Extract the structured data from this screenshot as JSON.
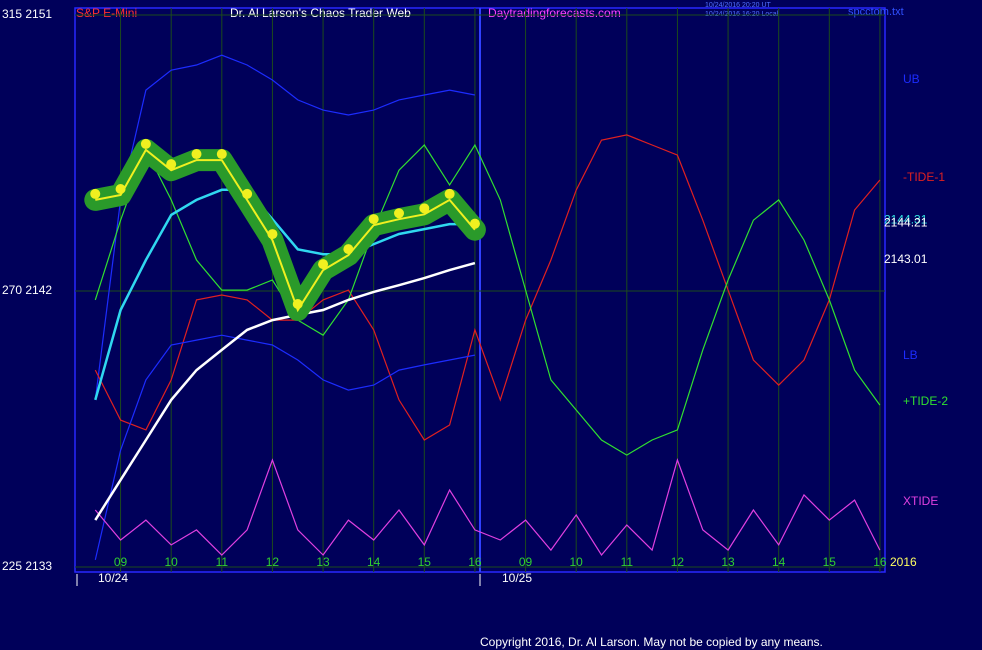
{
  "chart_data": {
    "type": "line",
    "symbol": "S&P E-Mini",
    "title": "Dr. Al Larson's Chaos Trader Web",
    "site": "Daytradingforecasts.com",
    "timestamps": [
      "10/24/2016 20:20 UT",
      "10/24/2016 16:20 Local"
    ],
    "file": "spcctom.txt",
    "copyright": "Copyright 2016, Dr. Al Larson. May not be copied by any means.",
    "dates": [
      "10/24",
      "10/25"
    ],
    "year": "2016",
    "xlim": [
      8.1,
      24.1
    ],
    "xticks": [
      {
        "value": 9,
        "label": "09"
      },
      10,
      11,
      12,
      13,
      14,
      15,
      16,
      {
        "value": 17,
        "label": "09"
      },
      {
        "value": 18,
        "label": "10"
      },
      {
        "value": 19,
        "label": "11"
      },
      {
        "value": 20,
        "label": "12"
      },
      {
        "value": 21,
        "label": "13"
      },
      {
        "value": 22,
        "label": "14"
      },
      {
        "value": 23,
        "label": "15"
      },
      {
        "value": 24,
        "label": "16"
      }
    ],
    "ylim": [
      2133,
      2151
    ],
    "yticks": [
      {
        "value": 2133,
        "label": "225  2133"
      },
      {
        "value": 2142,
        "label": "270  2142"
      },
      {
        "value": 2151,
        "label": "315  2151"
      }
    ],
    "last_values": [
      {
        "value": 2144.31,
        "label": "2144.31"
      },
      {
        "value": 2144.21,
        "label": "2144.21"
      },
      {
        "value": 2143.01,
        "label": "2143.01"
      }
    ],
    "x": [
      8.5,
      9,
      9.5,
      10,
      10.5,
      11,
      11.5,
      12,
      12.5,
      13,
      13.5,
      14,
      14.5,
      15,
      15.5,
      16,
      16.5,
      17,
      17.5,
      18,
      18.5,
      19,
      19.5,
      20,
      20.5,
      21,
      21.5,
      22,
      22.5,
      23,
      23.5,
      24
    ],
    "series": [
      {
        "name": "UB",
        "color": "#1c2cff",
        "values": [
          2138.45,
          2144.97,
          2148.55,
          2149.2,
          2149.37,
          2149.69,
          2149.37,
          2148.88,
          2148.23,
          2147.9,
          2147.74,
          2147.9,
          2148.23,
          2148.39,
          2148.55,
          2148.39,
          null,
          null,
          null,
          null,
          null,
          null,
          null,
          null,
          null,
          null,
          null,
          null,
          null,
          null,
          null,
          null
        ]
      },
      {
        "name": "-TIDE-1",
        "color": "#e02020",
        "values": [
          2139.42,
          2137.79,
          2137.47,
          2139.1,
          2141.71,
          2141.87,
          2141.71,
          2141.05,
          2141.05,
          2141.71,
          2142.03,
          2140.73,
          2138.45,
          2137.14,
          2137.63,
          2140.73,
          2138.45,
          2141.05,
          2143.01,
          2145.29,
          2146.92,
          2147.09,
          2146.76,
          2146.43,
          2144.31,
          2142.03,
          2139.75,
          2138.93,
          2139.75,
          2141.71,
          2144.64,
          2145.62
        ]
      },
      {
        "name": "LB",
        "color": "#1c2cff",
        "values": [
          2133.23,
          2136.81,
          2139.1,
          2140.24,
          2140.4,
          2140.56,
          2140.4,
          2140.24,
          2139.75,
          2139.1,
          2138.77,
          2138.93,
          2139.42,
          2139.59,
          2139.75,
          2139.91,
          null,
          null,
          null,
          null,
          null,
          null,
          null,
          null,
          null,
          null,
          null,
          null,
          null,
          null,
          null,
          null
        ]
      },
      {
        "name": "+TIDE-2",
        "color": "#30e030",
        "values": [
          2141.71,
          2144.31,
          2146.6,
          2144.97,
          2143.01,
          2142.03,
          2142.03,
          2142.36,
          2141.05,
          2140.56,
          2141.71,
          2143.99,
          2145.94,
          2146.76,
          2145.46,
          2146.76,
          2144.97,
          2142.03,
          2139.1,
          2138.12,
          2137.14,
          2136.65,
          2137.14,
          2137.47,
          2140.08,
          2142.36,
          2144.31,
          2144.97,
          2143.66,
          2141.71,
          2139.42,
          2138.28
        ]
      },
      {
        "name": "XTIDE",
        "color": "#e040e0",
        "values": [
          2134.86,
          2133.88,
          2134.53,
          2133.72,
          2134.21,
          2133.39,
          2134.21,
          2136.49,
          2134.21,
          2133.39,
          2134.53,
          2133.88,
          2134.86,
          2133.72,
          2135.51,
          2134.21,
          2133.88,
          2134.53,
          2133.55,
          2134.7,
          2133.39,
          2134.37,
          2133.55,
          2136.49,
          2134.21,
          2133.55,
          2134.86,
          2133.72,
          2135.35,
          2134.53,
          2135.18,
          2133.55
        ]
      },
      {
        "color": "#ffffff",
        "values": [
          2134.53,
          2135.84,
          2137.14,
          2138.45,
          2139.42,
          2140.08,
          2140.73,
          2141.05,
          2141.22,
          2141.38,
          2141.71,
          2141.97,
          2142.19,
          2142.42,
          2142.68,
          2142.91,
          null,
          null,
          null,
          null,
          null,
          null,
          null,
          null,
          null,
          null,
          null,
          null,
          null,
          null,
          null,
          null
        ]
      },
      {
        "color": "#30d8f0",
        "values": [
          2138.45,
          2141.38,
          2143.01,
          2144.48,
          2144.97,
          2145.3,
          2145.3,
          2144.34,
          2143.36,
          2143.2,
          2143.2,
          2143.53,
          2143.86,
          2144.02,
          2144.18,
          2144.18,
          null,
          null,
          null,
          null,
          null,
          null,
          null,
          null,
          null,
          null,
          null,
          null,
          null,
          null,
          null,
          null
        ]
      },
      {
        "color": "#f0f020",
        "band_color": "#2a9a2a",
        "values": [
          2144.97,
          2145.13,
          2146.6,
          2145.94,
          2146.27,
          2146.27,
          2144.97,
          2143.66,
          2141.38,
          2142.68,
          2143.17,
          2144.15,
          2144.34,
          2144.5,
          2144.97,
          2144.0,
          null,
          null,
          null,
          null,
          null,
          null,
          null,
          null,
          null,
          null,
          null,
          null,
          null,
          null,
          null,
          null
        ]
      }
    ]
  }
}
